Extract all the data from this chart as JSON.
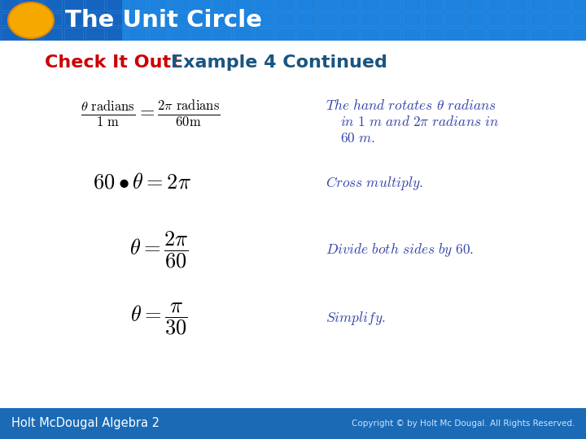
{
  "title": "The Unit Circle",
  "subtitle_red": "Check It Out!",
  "subtitle_blue": "Example 4 Continued",
  "header_bg_left": "#1a5ea8",
  "header_bg_right": "#2196f3",
  "header_text_color": "#ffffff",
  "circle_color": "#f5a800",
  "body_bg_color": "#ffffff",
  "math_color": "#000000",
  "comment_color": "#3344aa",
  "footer_bg": "#1a6ab5",
  "footer_text_color": "#ffffff",
  "footer_left": "Holt McDougal Algebra 2",
  "footer_right": "Copyright © by Holt Mc Dougal. All Rights Reserved.",
  "grid_color": "#5599dd"
}
